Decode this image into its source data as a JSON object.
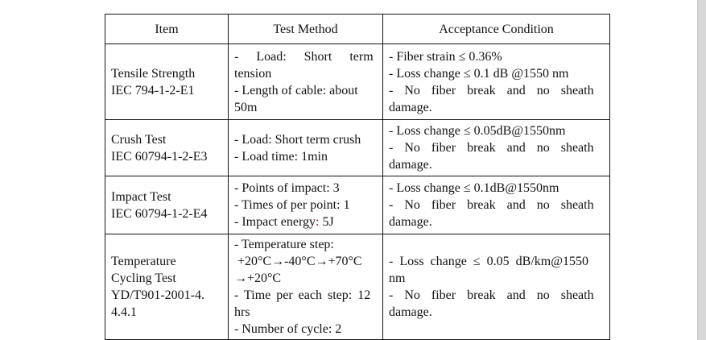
{
  "page": {
    "background": "#ffffff",
    "right_strip_color": "#d8d8d8",
    "border_color": "#141414",
    "text_color": "#131313",
    "accent_red": "#c00000"
  },
  "table": {
    "headers": {
      "item": "Item",
      "test_method": "Test Method",
      "acceptance": "Acceptance Condition"
    },
    "rows": [
      {
        "item": [
          "Tensile Strength",
          "IEC 794-1-2-E1"
        ],
        "method": [
          "- Load: Short term",
          "tension",
          "- Length of cable: about",
          "50m"
        ],
        "acceptance": [
          "- Fiber strain ≤ 0.36%",
          "- Loss change ≤ 0.1 dB @1550 nm",
          "- No fiber break and no sheath",
          "damage."
        ]
      },
      {
        "item": [
          "Crush Test",
          "IEC 60794-1-2-E3"
        ],
        "method": [
          "- Load: Short term crush",
          "- Load time: 1min"
        ],
        "acceptance": [
          "- Loss change ≤ 0.05dB@1550nm",
          "- No fiber break and no sheath",
          "damage."
        ]
      },
      {
        "item": [
          "Impact Test",
          "IEC 60794-1-2-E4"
        ],
        "method": [
          "- Points of impact: 3",
          "- Times of per point: 1"
        ],
        "method_energy": {
          "prefix": "- Impact energy",
          "colon": ":",
          "suffix": " 5J"
        },
        "acceptance": [
          "- Loss change ≤ 0.1dB@1550nm",
          "- No fiber break and no sheath",
          "damage."
        ]
      },
      {
        "item": [
          "Temperature",
          "Cycling Test",
          "YD/T901-2001-4.",
          "4.4.1"
        ],
        "method": [
          "- Temperature step:",
          " +20°C→-40°C→+70°C",
          "→+20°C",
          "- Time per each step: 12",
          "hrs",
          "- Number of cycle: 2"
        ],
        "acceptance": [
          "- Loss change ≤ 0.05 dB/km@1550",
          "nm",
          "- No fiber break and no sheath",
          "damage."
        ]
      }
    ]
  }
}
